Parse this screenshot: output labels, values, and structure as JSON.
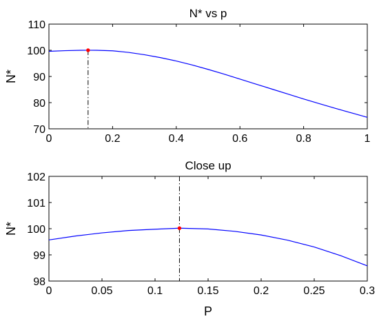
{
  "chart_data": [
    {
      "type": "line",
      "title": "N* vs p",
      "xlabel": "",
      "ylabel": "N*",
      "xlim": [
        0,
        1
      ],
      "ylim": [
        70,
        110
      ],
      "xticks": [
        0,
        0.2,
        0.4,
        0.6,
        0.8,
        1
      ],
      "xtick_labels": [
        "0",
        "0.2",
        "0.4",
        "0.6",
        "0.8",
        "1"
      ],
      "yticks": [
        70,
        80,
        90,
        100,
        110
      ],
      "ytick_labels": [
        "70",
        "80",
        "90",
        "100",
        "110"
      ],
      "grid": false,
      "legend": false,
      "series": [
        {
          "color": "#0000ff",
          "x": [
            0,
            0.05,
            0.1,
            0.123,
            0.15,
            0.2,
            0.25,
            0.3,
            0.35,
            0.4,
            0.45,
            0.5,
            0.55,
            0.6,
            0.65,
            0.7,
            0.75,
            0.8,
            0.85,
            0.9,
            0.95,
            1.0
          ],
          "y": [
            99.6,
            99.85,
            100.0,
            100.02,
            100.0,
            99.8,
            99.2,
            98.3,
            97.2,
            95.9,
            94.4,
            92.7,
            90.9,
            89.0,
            87.1,
            85.2,
            83.3,
            81.4,
            79.6,
            77.8,
            76.1,
            74.4
          ]
        }
      ],
      "marker": {
        "x": 0.123,
        "y": 100.02,
        "color": "#ff0000"
      },
      "vline": {
        "x": 0.123
      }
    },
    {
      "type": "line",
      "title": "Close up",
      "xlabel": "P",
      "ylabel": "N*",
      "xlim": [
        0,
        0.3
      ],
      "ylim": [
        98,
        102
      ],
      "xticks": [
        0,
        0.05,
        0.1,
        0.15,
        0.2,
        0.25,
        0.3
      ],
      "xtick_labels": [
        "0",
        "0.05",
        "0.1",
        "0.15",
        "0.2",
        "0.25",
        "0.3"
      ],
      "yticks": [
        98,
        99,
        100,
        101,
        102
      ],
      "ytick_labels": [
        "98",
        "99",
        "100",
        "101",
        "102"
      ],
      "grid": false,
      "legend": false,
      "series": [
        {
          "color": "#0000ff",
          "x": [
            0,
            0.025,
            0.05,
            0.075,
            0.1,
            0.123,
            0.15,
            0.175,
            0.2,
            0.225,
            0.25,
            0.275,
            0.3
          ],
          "y": [
            99.57,
            99.72,
            99.84,
            99.93,
            99.98,
            100.02,
            99.99,
            99.9,
            99.76,
            99.56,
            99.3,
            98.97,
            98.58
          ]
        }
      ],
      "marker": {
        "x": 0.123,
        "y": 100.02,
        "color": "#ff0000"
      },
      "vline": {
        "x": 0.123
      }
    }
  ]
}
